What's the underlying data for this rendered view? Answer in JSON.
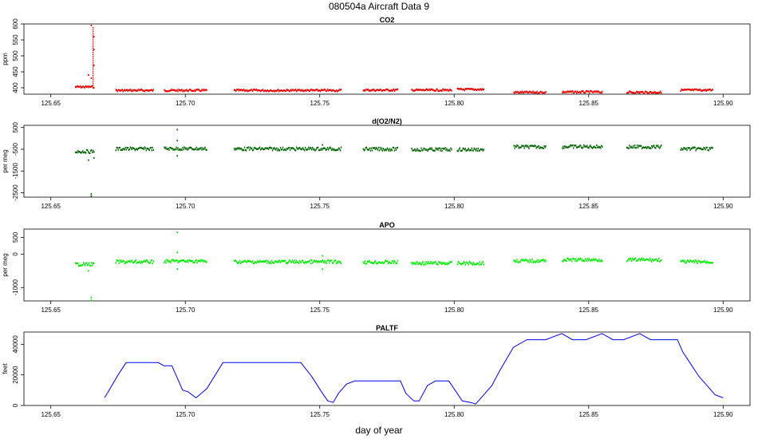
{
  "figure": {
    "title": "080504a    Aircraft Data 9",
    "xlabel": "day of year"
  },
  "colors": {
    "co2": "#ee0000",
    "o2n2": "#006400",
    "apo": "#00ee00",
    "paltf": "#0000ee"
  },
  "chart_data": [
    {
      "type": "scatter",
      "title": "CO2",
      "ylabel": "ppm",
      "xlim": [
        125.64,
        125.91
      ],
      "ylim": [
        380,
        600
      ],
      "xticks": [
        "125.65",
        "125.70",
        "125.75",
        "125.80",
        "125.85",
        "125.90"
      ],
      "yticks": [
        "400",
        "450",
        "500",
        "550",
        "600"
      ],
      "series": [
        {
          "segments": [
            [
              125.659,
              125.666,
              403
            ],
            [
              125.674,
              125.688,
              392
            ],
            [
              125.692,
              125.708,
              392
            ],
            [
              125.718,
              125.758,
              392
            ],
            [
              125.766,
              125.779,
              393
            ],
            [
              125.784,
              125.799,
              393
            ],
            [
              125.801,
              125.811,
              395
            ],
            [
              125.822,
              125.834,
              386
            ],
            [
              125.84,
              125.855,
              387
            ],
            [
              125.864,
              125.877,
              386
            ],
            [
              125.884,
              125.896,
              393
            ]
          ],
          "spikes": [
            [
              125.665,
              595
            ],
            [
              125.666,
              560
            ],
            [
              125.666,
              520
            ],
            [
              125.664,
              440
            ],
            [
              125.665,
              430
            ],
            [
              125.666,
              470
            ]
          ]
        }
      ]
    },
    {
      "type": "scatter",
      "title": "d(O2/N2)",
      "ylabel": "per meg",
      "xlim": [
        125.64,
        125.91
      ],
      "ylim": [
        -2700,
        600
      ],
      "xticks": [
        "125.65",
        "125.70",
        "125.75",
        "125.80",
        "125.85",
        "125.90"
      ],
      "yticks": [
        "-2500",
        "-1500",
        "-500",
        "500"
      ],
      "series": [
        {
          "segments": [
            [
              125.659,
              125.666,
              -600
            ],
            [
              125.674,
              125.688,
              -480
            ],
            [
              125.692,
              125.708,
              -470
            ],
            [
              125.718,
              125.758,
              -480
            ],
            [
              125.766,
              125.779,
              -490
            ],
            [
              125.784,
              125.799,
              -510
            ],
            [
              125.801,
              125.811,
              -510
            ],
            [
              125.822,
              125.834,
              -390
            ],
            [
              125.84,
              125.855,
              -380
            ],
            [
              125.864,
              125.877,
              -390
            ],
            [
              125.884,
              125.896,
              -480
            ]
          ],
          "spikes": [
            [
              125.665,
              -2550
            ],
            [
              125.665,
              -2650
            ],
            [
              125.664,
              -1000
            ],
            [
              125.666,
              -900
            ],
            [
              125.697,
              400
            ],
            [
              125.697,
              -100
            ],
            [
              125.697,
              -800
            ],
            [
              125.751,
              -300
            ]
          ]
        }
      ]
    },
    {
      "type": "scatter",
      "title": "APO",
      "ylabel": "per meg",
      "xlim": [
        125.64,
        125.91
      ],
      "ylim": [
        -1400,
        750
      ],
      "xticks": [
        "125.65",
        "125.70",
        "125.75",
        "125.80",
        "125.85",
        "125.90"
      ],
      "yticks": [
        "-1000",
        "0",
        "500"
      ],
      "series": [
        {
          "segments": [
            [
              125.659,
              125.666,
              -300
            ],
            [
              125.674,
              125.688,
              -230
            ],
            [
              125.692,
              125.708,
              -210
            ],
            [
              125.718,
              125.758,
              -230
            ],
            [
              125.766,
              125.779,
              -240
            ],
            [
              125.784,
              125.799,
              -270
            ],
            [
              125.801,
              125.811,
              -270
            ],
            [
              125.822,
              125.834,
              -200
            ],
            [
              125.84,
              125.855,
              -170
            ],
            [
              125.864,
              125.877,
              -170
            ],
            [
              125.884,
              125.896,
              -230
            ]
          ],
          "spikes": [
            [
              125.665,
              -1300
            ],
            [
              125.665,
              -1380
            ],
            [
              125.664,
              -500
            ],
            [
              125.697,
              650
            ],
            [
              125.697,
              50
            ],
            [
              125.697,
              -450
            ],
            [
              125.751,
              -50
            ],
            [
              125.751,
              -450
            ]
          ]
        }
      ]
    },
    {
      "type": "line",
      "title": "PALTF",
      "ylabel": "feet",
      "xlim": [
        125.64,
        125.91
      ],
      "ylim": [
        0,
        48000
      ],
      "xticks": [
        "125.65",
        "125.70",
        "125.75",
        "125.80",
        "125.85",
        "125.90"
      ],
      "yticks": [
        "0",
        "20000",
        "40000"
      ],
      "series": [
        {
          "x": [
            125.67,
            125.672,
            125.675,
            125.678,
            125.681,
            125.69,
            125.692,
            125.695,
            125.699,
            125.701,
            125.704,
            125.708,
            125.714,
            125.743,
            125.747,
            125.751,
            125.753,
            125.755,
            125.757,
            125.76,
            125.763,
            125.77,
            125.78,
            125.782,
            125.785,
            125.787,
            125.79,
            125.793,
            125.798,
            125.803,
            125.806,
            125.808,
            125.81,
            125.814,
            125.817,
            125.822,
            125.827,
            125.834,
            125.84,
            125.844,
            125.849,
            125.855,
            125.859,
            125.863,
            125.869,
            125.873,
            125.883,
            125.885,
            125.888,
            125.891,
            125.894,
            125.897,
            125.9
          ],
          "y": [
            5000,
            11000,
            20000,
            28000,
            28000,
            28000,
            26000,
            26000,
            10000,
            9000,
            5000,
            11000,
            28000,
            28000,
            19000,
            8000,
            3000,
            2000,
            8000,
            14000,
            16000,
            16000,
            16000,
            8000,
            3000,
            3000,
            13000,
            16000,
            16000,
            3000,
            2000,
            1000,
            5000,
            13000,
            23000,
            38000,
            43000,
            43000,
            47000,
            43000,
            43000,
            47000,
            43000,
            43000,
            47000,
            43000,
            43000,
            35000,
            27000,
            19000,
            13000,
            7000,
            5000
          ]
        }
      ]
    }
  ]
}
